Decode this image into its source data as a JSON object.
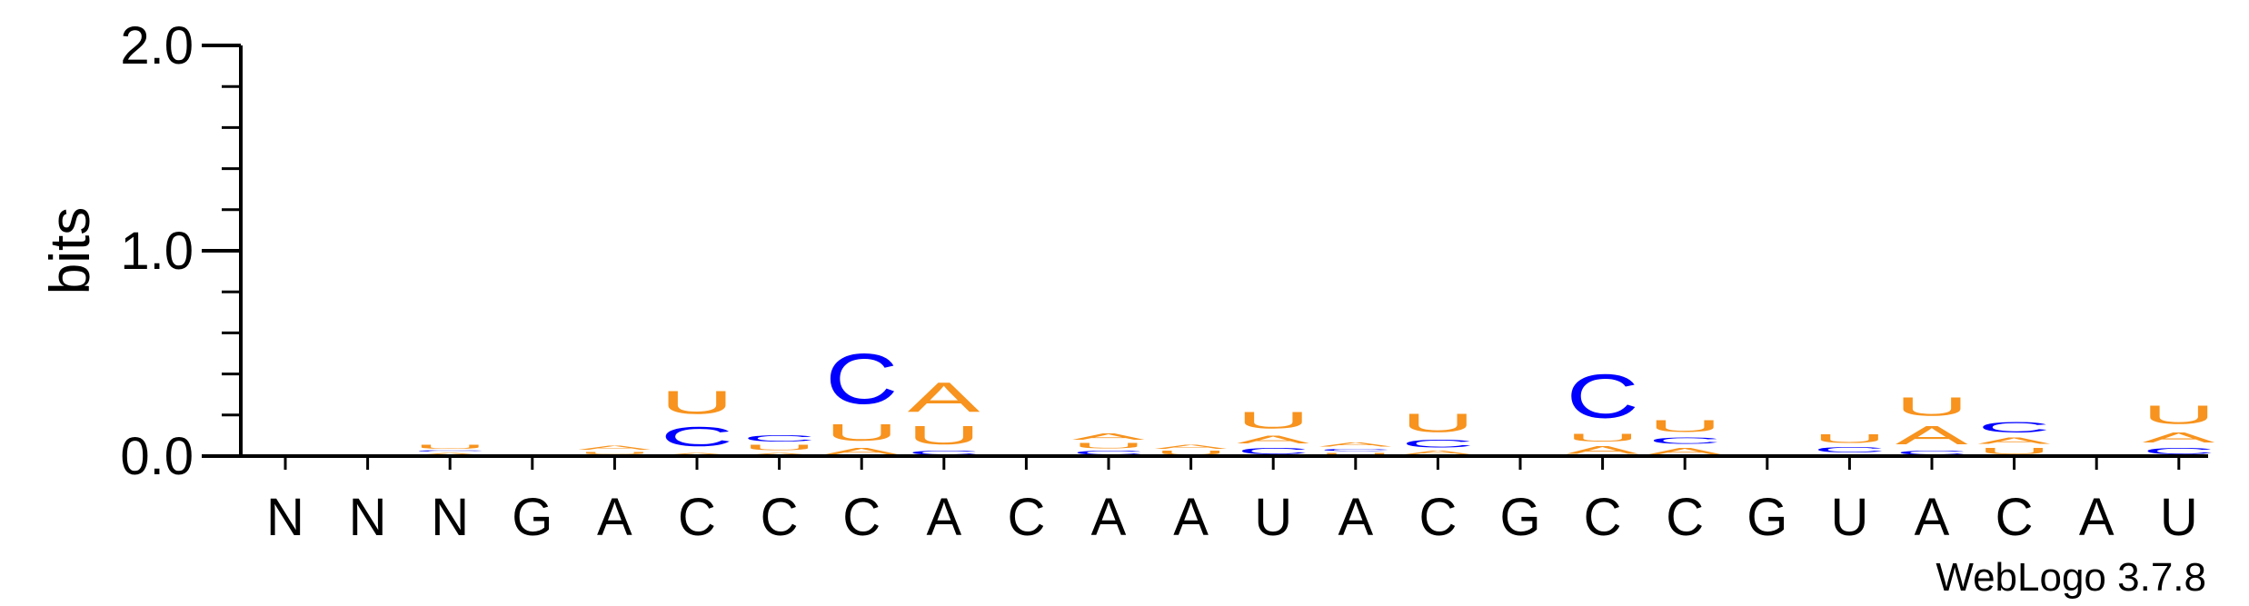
{
  "chart_data": {
    "type": "sequence-logo",
    "ylabel": "bits",
    "ylim": [
      0,
      2.0
    ],
    "yticks": [
      "0.0",
      "1.0",
      "2.0"
    ],
    "credit": "WebLogo 3.7.8",
    "colors": {
      "A": "#f7931e",
      "U": "#f7931e",
      "C": "#0000ff",
      "G": "#f7931e"
    },
    "positions": [
      "N",
      "N",
      "N",
      "G",
      "A",
      "C",
      "C",
      "C",
      "A",
      "C",
      "A",
      "A",
      "U",
      "A",
      "C",
      "G",
      "C",
      "C",
      "G",
      "U",
      "A",
      "C",
      "A",
      "U"
    ],
    "stacks": [
      [],
      [
        {
          "b": "C",
          "h": 0.01
        }
      ],
      [
        {
          "b": "A",
          "h": 0.02
        },
        {
          "b": "C",
          "h": 0.01
        },
        {
          "b": "U",
          "h": 0.03
        }
      ],
      [
        {
          "b": "C",
          "h": 0.005
        }
      ],
      [
        {
          "b": "C",
          "h": 0.005
        },
        {
          "b": "U",
          "h": 0.02
        },
        {
          "b": "A",
          "h": 0.03
        }
      ],
      [
        {
          "b": "A",
          "h": 0.02
        },
        {
          "b": "C",
          "h": 0.15
        },
        {
          "b": "U",
          "h": 0.18
        }
      ],
      [
        {
          "b": "A",
          "h": 0.02
        },
        {
          "b": "U",
          "h": 0.04
        },
        {
          "b": "C",
          "h": 0.05
        }
      ],
      [
        {
          "b": "A",
          "h": 0.05
        },
        {
          "b": "U",
          "h": 0.13
        },
        {
          "b": "C",
          "h": 0.39
        }
      ],
      [
        {
          "b": "C",
          "h": 0.03
        },
        {
          "b": "U",
          "h": 0.14
        },
        {
          "b": "A",
          "h": 0.23
        }
      ],
      [
        {
          "b": "C",
          "h": 0.01
        }
      ],
      [
        {
          "b": "C",
          "h": 0.03
        },
        {
          "b": "U",
          "h": 0.04
        },
        {
          "b": "A",
          "h": 0.05
        }
      ],
      [
        {
          "b": "U",
          "h": 0.03
        },
        {
          "b": "A",
          "h": 0.03
        }
      ],
      [
        {
          "b": "C",
          "h": 0.05
        },
        {
          "b": "A",
          "h": 0.06
        },
        {
          "b": "U",
          "h": 0.13
        }
      ],
      [
        {
          "b": "U",
          "h": 0.02
        },
        {
          "b": "C",
          "h": 0.02
        },
        {
          "b": "A",
          "h": 0.03
        }
      ],
      [
        {
          "b": "A",
          "h": 0.03
        },
        {
          "b": "C",
          "h": 0.06
        },
        {
          "b": "U",
          "h": 0.14
        }
      ],
      [],
      [
        {
          "b": "A",
          "h": 0.06
        },
        {
          "b": "U",
          "h": 0.06
        },
        {
          "b": "C",
          "h": 0.34
        }
      ],
      [
        {
          "b": "A",
          "h": 0.05
        },
        {
          "b": "C",
          "h": 0.05
        },
        {
          "b": "U",
          "h": 0.09
        }
      ],
      [],
      [
        {
          "b": "A",
          "h": 0.01
        },
        {
          "b": "C",
          "h": 0.04
        },
        {
          "b": "U",
          "h": 0.07
        }
      ],
      [
        {
          "b": "C",
          "h": 0.03
        },
        {
          "b": "A",
          "h": 0.14
        },
        {
          "b": "U",
          "h": 0.14
        }
      ],
      [
        {
          "b": "U",
          "h": 0.05
        },
        {
          "b": "A",
          "h": 0.05
        },
        {
          "b": "C",
          "h": 0.08
        }
      ],
      [],
      [
        {
          "b": "C",
          "h": 0.05
        },
        {
          "b": "A",
          "h": 0.08
        },
        {
          "b": "U",
          "h": 0.14
        }
      ]
    ]
  }
}
